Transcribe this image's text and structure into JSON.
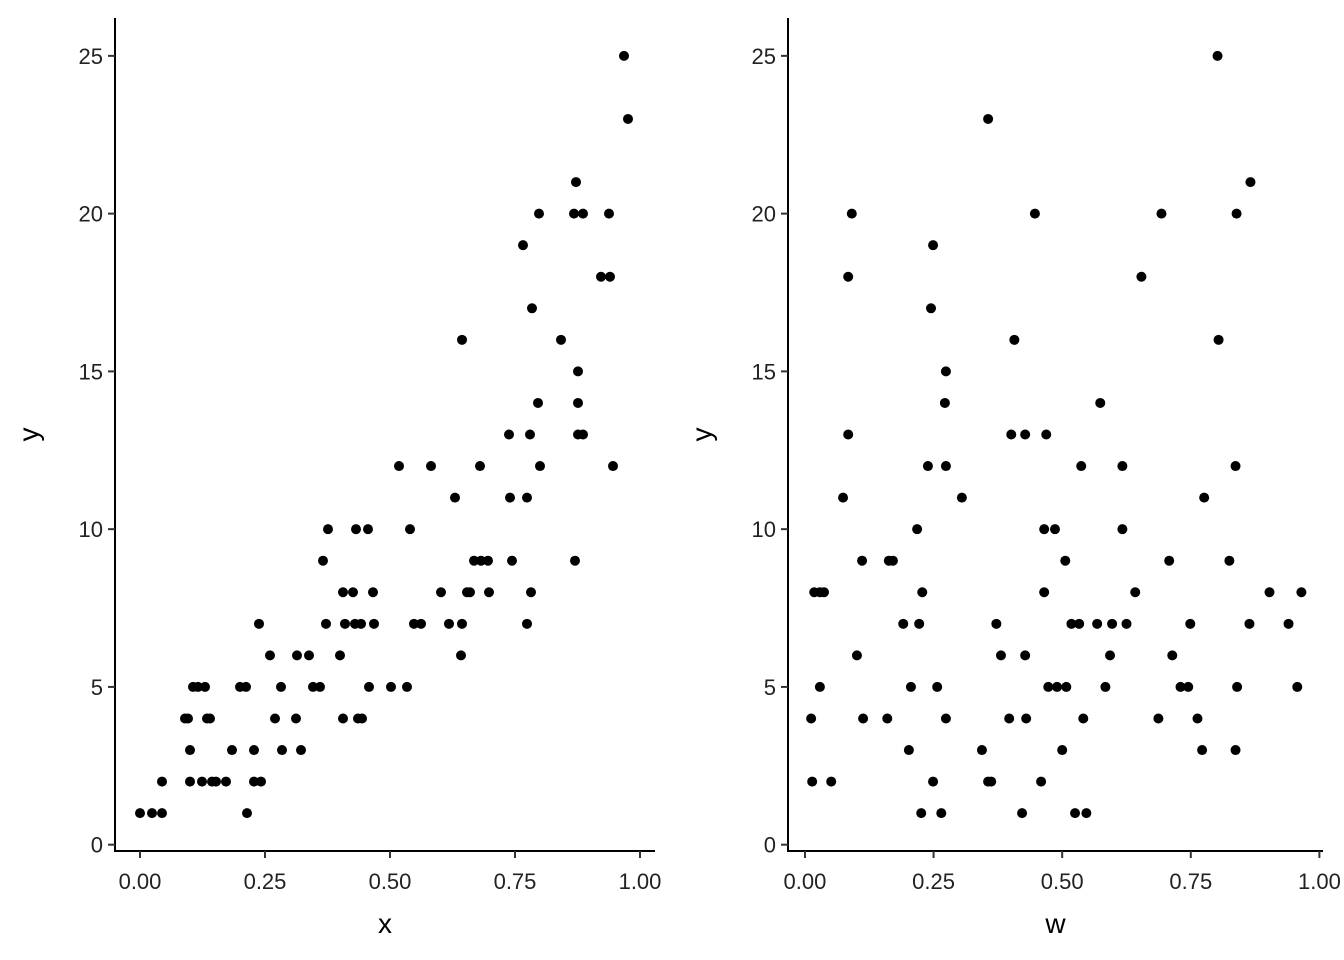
{
  "chart_data": [
    {
      "type": "scatter",
      "x_label": "x",
      "y_label": "y",
      "color": "#000000",
      "xlim": [
        -0.05,
        1.03
      ],
      "ylim": [
        -0.2,
        26.2
      ],
      "xticks": [
        {
          "value": 0,
          "label": "0.00"
        },
        {
          "value": 0.25,
          "label": "0.25"
        },
        {
          "value": 0.5,
          "label": "0.50"
        },
        {
          "value": 0.75,
          "label": "0.75"
        },
        {
          "value": 1,
          "label": "1.00"
        }
      ],
      "yticks": [
        0,
        5,
        10,
        15,
        20,
        25
      ],
      "x": [
        0.0,
        0.024,
        0.044,
        0.214,
        0.044,
        0.1,
        0.124,
        0.144,
        0.152,
        0.172,
        0.228,
        0.242,
        0.1,
        0.184,
        0.228,
        0.284,
        0.322,
        0.09,
        0.096,
        0.134,
        0.14,
        0.27,
        0.312,
        0.406,
        0.436,
        0.444,
        0.106,
        0.116,
        0.13,
        0.2,
        0.212,
        0.282,
        0.346,
        0.36,
        0.458,
        0.502,
        0.534,
        0.26,
        0.314,
        0.338,
        0.4,
        0.642,
        0.238,
        0.372,
        0.41,
        0.43,
        0.442,
        0.468,
        0.548,
        0.562,
        0.618,
        0.644,
        0.774,
        0.406,
        0.426,
        0.466,
        0.602,
        0.654,
        0.66,
        0.698,
        0.782,
        0.366,
        0.668,
        0.682,
        0.696,
        0.744,
        0.87,
        0.376,
        0.432,
        0.456,
        0.54,
        0.63,
        0.74,
        0.774,
        0.518,
        0.582,
        0.68,
        0.8,
        0.946,
        0.738,
        0.78,
        0.876,
        0.886,
        0.796,
        0.876,
        0.876,
        0.644,
        0.842,
        0.784,
        0.922,
        0.94,
        0.766,
        0.798,
        0.868,
        0.886,
        0.938,
        0.872,
        0.976,
        0.968
      ],
      "y": [
        1,
        1,
        1,
        1,
        2,
        2,
        2,
        2,
        2,
        2,
        2,
        2,
        3,
        3,
        3,
        3,
        3,
        4,
        4,
        4,
        4,
        4,
        4,
        4,
        4,
        4,
        5,
        5,
        5,
        5,
        5,
        5,
        5,
        5,
        5,
        5,
        5,
        6,
        6,
        6,
        6,
        6,
        7,
        7,
        7,
        7,
        7,
        7,
        7,
        7,
        7,
        7,
        7,
        8,
        8,
        8,
        8,
        8,
        8,
        8,
        8,
        9,
        9,
        9,
        9,
        9,
        9,
        10,
        10,
        10,
        10,
        11,
        11,
        11,
        12,
        12,
        12,
        12,
        12,
        13,
        13,
        13,
        13,
        14,
        14,
        15,
        16,
        16,
        17,
        18,
        18,
        19,
        20,
        20,
        20,
        20,
        21,
        23,
        25
      ]
    },
    {
      "type": "scatter",
      "x_label": "w",
      "y_label": "y",
      "color": "#000000",
      "xlim": [
        -0.033,
        1.007
      ],
      "ylim": [
        -0.2,
        26.2
      ],
      "xticks": [
        {
          "value": 0,
          "label": "0.00"
        },
        {
          "value": 0.25,
          "label": "0.25"
        },
        {
          "value": 0.5,
          "label": "0.50"
        },
        {
          "value": 0.75,
          "label": "0.75"
        },
        {
          "value": 1,
          "label": "1.00"
        }
      ],
      "yticks": [
        0,
        5,
        10,
        15,
        20,
        25
      ],
      "x": [
        0.226,
        0.265,
        0.422,
        0.525,
        0.547,
        0.014,
        0.051,
        0.249,
        0.356,
        0.362,
        0.459,
        0.202,
        0.344,
        0.5,
        0.772,
        0.837,
        0.012,
        0.113,
        0.16,
        0.274,
        0.397,
        0.43,
        0.541,
        0.687,
        0.763,
        0.029,
        0.206,
        0.257,
        0.473,
        0.49,
        0.508,
        0.584,
        0.73,
        0.745,
        0.84,
        0.957,
        0.101,
        0.381,
        0.428,
        0.593,
        0.714,
        0.191,
        0.222,
        0.372,
        0.518,
        0.533,
        0.568,
        0.597,
        0.625,
        0.749,
        0.864,
        0.94,
        0.018,
        0.029,
        0.037,
        0.228,
        0.465,
        0.642,
        0.903,
        0.965,
        0.111,
        0.163,
        0.171,
        0.506,
        0.708,
        0.825,
        0.218,
        0.465,
        0.486,
        0.617,
        0.074,
        0.305,
        0.776,
        0.239,
        0.274,
        0.537,
        0.617,
        0.837,
        0.084,
        0.401,
        0.428,
        0.469,
        0.272,
        0.574,
        0.274,
        0.407,
        0.804,
        0.245,
        0.084,
        0.654,
        0.249,
        0.091,
        0.447,
        0.693,
        0.839,
        0.866,
        0.356,
        0.802
      ],
      "y": [
        1,
        1,
        1,
        1,
        1,
        2,
        2,
        2,
        2,
        2,
        2,
        3,
        3,
        3,
        3,
        3,
        4,
        4,
        4,
        4,
        4,
        4,
        4,
        4,
        4,
        5,
        5,
        5,
        5,
        5,
        5,
        5,
        5,
        5,
        5,
        5,
        6,
        6,
        6,
        6,
        6,
        7,
        7,
        7,
        7,
        7,
        7,
        7,
        7,
        7,
        7,
        7,
        8,
        8,
        8,
        8,
        8,
        8,
        8,
        8,
        9,
        9,
        9,
        9,
        9,
        9,
        10,
        10,
        10,
        10,
        11,
        11,
        11,
        12,
        12,
        12,
        12,
        12,
        13,
        13,
        13,
        13,
        14,
        14,
        15,
        16,
        16,
        17,
        18,
        18,
        19,
        20,
        20,
        20,
        20,
        21,
        23,
        25
      ]
    }
  ]
}
